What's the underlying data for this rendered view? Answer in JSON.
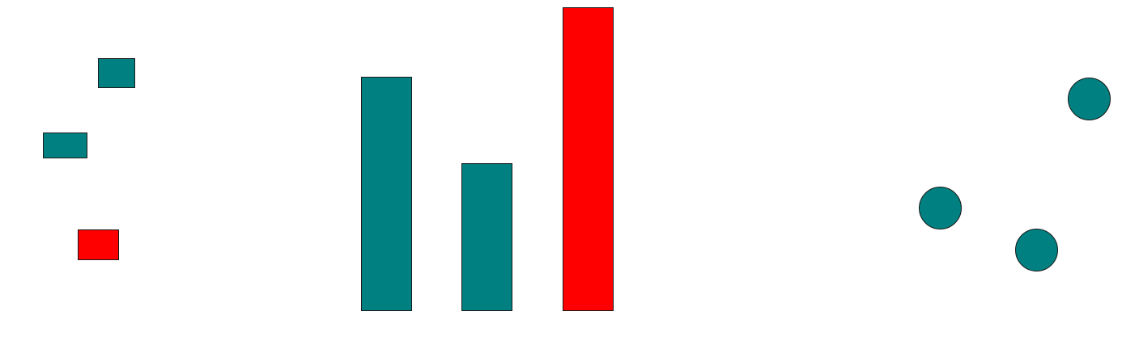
{
  "colors": {
    "primary": "#008080",
    "highlight": "#ff0000",
    "outline": "#1a1a1a",
    "background": "#ffffff"
  },
  "groups": {
    "rectangles": {
      "shape": "rectangle",
      "items": [
        {
          "color": "primary"
        },
        {
          "color": "primary"
        },
        {
          "color": "highlight"
        }
      ]
    },
    "bars": {
      "shape": "bar",
      "items": [
        {
          "color": "primary"
        },
        {
          "color": "primary"
        },
        {
          "color": "highlight"
        }
      ]
    },
    "circles": {
      "shape": "circle",
      "items": [
        {
          "color": "primary"
        },
        {
          "color": "primary"
        },
        {
          "color": "primary"
        }
      ]
    }
  }
}
